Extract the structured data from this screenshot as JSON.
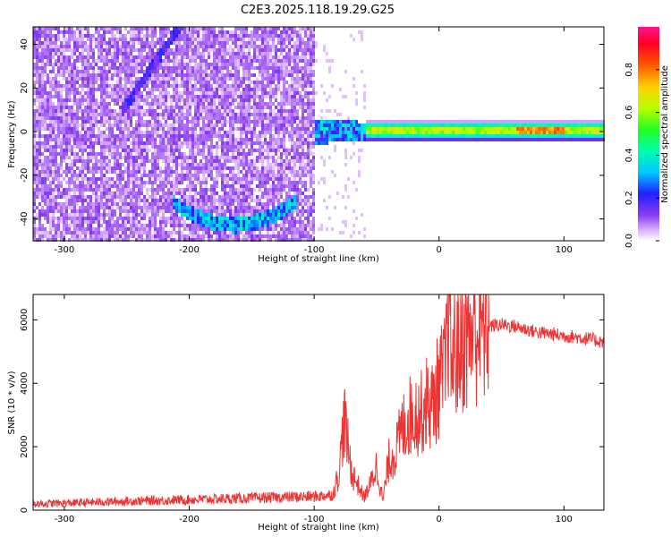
{
  "title": "C2E3.2025.118.19.29.G25",
  "colorbar": {
    "label": "Normalized spectral amplitude",
    "ticks": [
      "0.0",
      "0.2",
      "0.4",
      "0.6",
      "0.8"
    ],
    "tick_values": [
      0.0,
      0.2,
      0.4,
      0.6,
      0.8
    ],
    "range": [
      0,
      1
    ]
  },
  "chart_data": [
    {
      "type": "heatmap",
      "xlabel": "Height of straight line (km)",
      "ylabel": "Frequency (Hz)",
      "xlim": [
        -325,
        132
      ],
      "ylim": [
        -50,
        48
      ],
      "x_ticks": [
        -300,
        -200,
        -100,
        0,
        100
      ],
      "x_tick_labels": [
        "-300",
        "-200",
        "-100",
        "0",
        "100"
      ],
      "y_ticks": [
        -40,
        -20,
        0,
        20,
        40
      ],
      "y_tick_labels": [
        "-40",
        "-20",
        "0",
        "20",
        "40"
      ],
      "features": [
        {
          "name": "noise",
          "x_range": [
            -325,
            -100
          ],
          "level": 0.1
        },
        {
          "name": "arc-lower",
          "x_range": [
            -215,
            -115
          ],
          "center_freq": -42,
          "level": 0.4
        },
        {
          "name": "line-upper",
          "x_start": [
            -255,
            10
          ],
          "x_end": [
            -210,
            48
          ],
          "level": 0.1
        },
        {
          "name": "carrier",
          "x_range": [
            -100,
            132
          ],
          "freq": 1,
          "level": 0.5
        }
      ]
    },
    {
      "type": "line",
      "xlabel": "Height of straight line (km)",
      "ylabel": "SNR (10 * v/v)",
      "xlim": [
        -325,
        132
      ],
      "ylim": [
        0,
        6800
      ],
      "x_ticks": [
        -300,
        -200,
        -100,
        0,
        100
      ],
      "x_tick_labels": [
        "-300",
        "-200",
        "-100",
        "0",
        "100"
      ],
      "y_ticks": [
        0,
        2000,
        4000,
        6000
      ],
      "y_tick_labels": [
        "0",
        "2000",
        "4000",
        "6000"
      ],
      "color": "#ee3333",
      "series": [
        {
          "x": [
            -325,
            -300,
            -250,
            -200,
            -150,
            -100,
            -85,
            -80,
            -76,
            -73,
            -70,
            -65,
            -60,
            -55,
            -50,
            -45,
            -40,
            -35,
            -30,
            -25,
            -20,
            -15,
            -10,
            -5,
            0,
            5,
            7,
            10,
            15,
            20,
            25,
            30,
            40,
            50,
            60,
            70,
            80,
            90,
            100,
            110,
            120,
            132
          ],
          "y": [
            200,
            220,
            280,
            330,
            380,
            430,
            480,
            1200,
            2900,
            2000,
            1200,
            800,
            400,
            800,
            1400,
            300,
            1600,
            1800,
            2500,
            2900,
            3100,
            3000,
            3400,
            3300,
            4000,
            4300,
            6500,
            4800,
            5100,
            5400,
            5600,
            5750,
            5800,
            5850,
            5800,
            5700,
            5600,
            5550,
            5500,
            5450,
            5400,
            5300
          ]
        }
      ]
    }
  ]
}
